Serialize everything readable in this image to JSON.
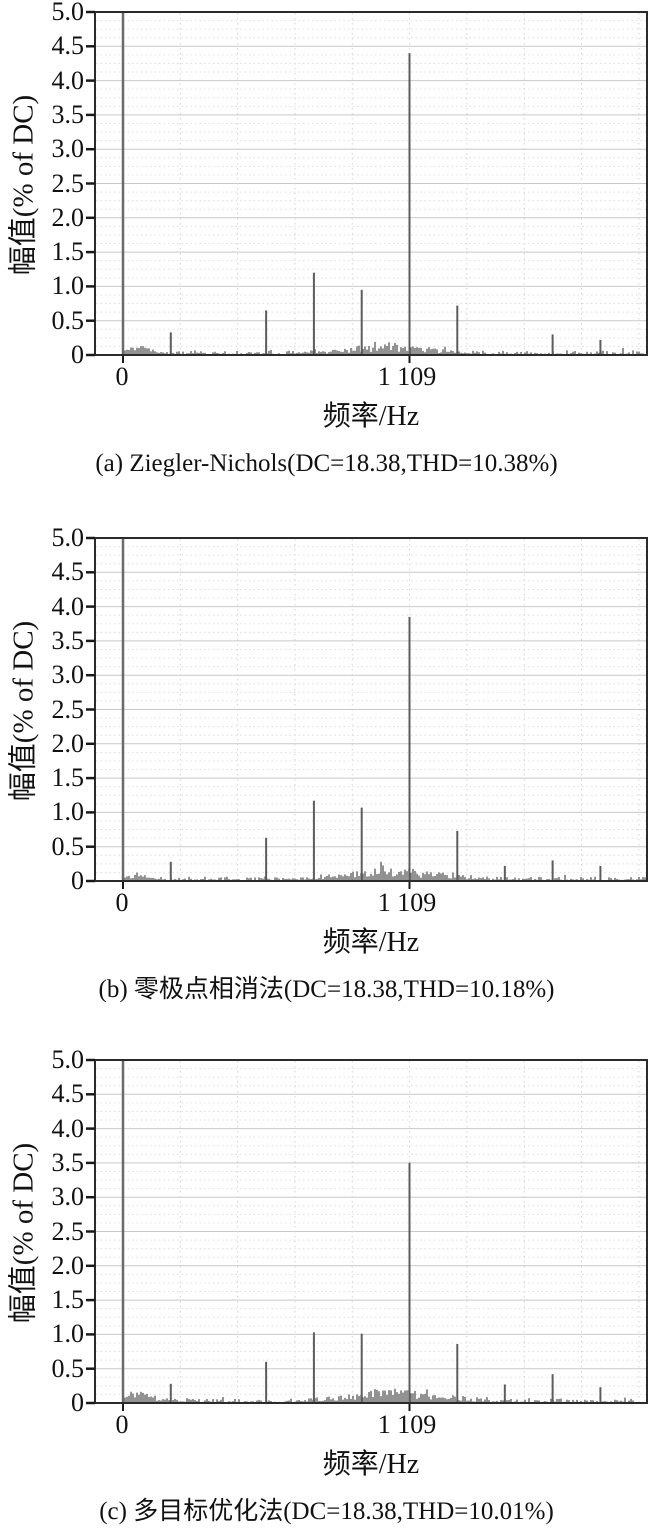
{
  "figure": {
    "ylabel": "幅值(% of DC)",
    "xlabel": "频率/Hz"
  },
  "chart_data": [
    {
      "type": "bar",
      "panel": "a",
      "title": "(a) Ziegler-Nichols(DC=18.38,THD=10.38%)",
      "method": "Ziegler-Nichols",
      "dc": 18.38,
      "thd_percent": 10.38,
      "xlabel": "频率/Hz",
      "ylabel": "幅值(% of DC)",
      "ylim": [
        0,
        5.0
      ],
      "grid": "on",
      "y_ticks": [
        "0",
        "0.5",
        "1.0",
        "1.5",
        "2.0",
        "2.5",
        "3.0",
        "3.5",
        "4.0",
        "4.5",
        "5.0"
      ],
      "x_ticks": [
        {
          "hz": 0,
          "label": "0"
        },
        {
          "hz": 1109,
          "label": "1 109"
        }
      ],
      "dc_spike": {
        "hz": 0,
        "amplitude": 5.0,
        "clipped": true
      },
      "peaks": [
        {
          "hz": 185,
          "amp": 0.33
        },
        {
          "hz": 554,
          "amp": 0.65
        },
        {
          "hz": 739,
          "amp": 1.2
        },
        {
          "hz": 924,
          "amp": 0.95
        },
        {
          "hz": 1109,
          "amp": 4.4
        },
        {
          "hz": 1294,
          "amp": 0.72
        },
        {
          "hz": 1663,
          "amp": 0.3
        },
        {
          "hz": 1848,
          "amp": 0.22
        }
      ],
      "noise": {
        "seed": 11,
        "baseline": 0.05,
        "hump_center_hz": 1040,
        "hump_sigma_hz": 200,
        "hump_peak": 0.17,
        "dc_cluster_peak": 0.13
      }
    },
    {
      "type": "bar",
      "panel": "b",
      "title": "(b) 零极点相消法(DC=18.38,THD=10.18%)",
      "method": "零极点相消法",
      "dc": 18.38,
      "thd_percent": 10.18,
      "xlabel": "频率/Hz",
      "ylabel": "幅值(% of DC)",
      "ylim": [
        0,
        5.0
      ],
      "grid": "on",
      "y_ticks": [
        "0",
        "0.5",
        "1.0",
        "1.5",
        "2.0",
        "2.5",
        "3.0",
        "3.5",
        "4.0",
        "4.5",
        "5.0"
      ],
      "x_ticks": [
        {
          "hz": 0,
          "label": "0"
        },
        {
          "hz": 1109,
          "label": "1 109"
        }
      ],
      "dc_spike": {
        "hz": 0,
        "amplitude": 5.0,
        "clipped": true
      },
      "peaks": [
        {
          "hz": 185,
          "amp": 0.28
        },
        {
          "hz": 554,
          "amp": 0.63
        },
        {
          "hz": 739,
          "amp": 1.17
        },
        {
          "hz": 924,
          "amp": 1.07
        },
        {
          "hz": 1109,
          "amp": 3.85
        },
        {
          "hz": 1294,
          "amp": 0.73
        },
        {
          "hz": 1478,
          "amp": 0.22
        },
        {
          "hz": 1663,
          "amp": 0.3
        },
        {
          "hz": 1848,
          "amp": 0.22
        }
      ],
      "noise": {
        "seed": 22,
        "baseline": 0.05,
        "hump_center_hz": 1050,
        "hump_sigma_hz": 215,
        "hump_peak": 0.19,
        "dc_cluster_peak": 0.1
      }
    },
    {
      "type": "bar",
      "panel": "c",
      "title": "(c) 多目标优化法(DC=18.38,THD=10.01%)",
      "method": "多目标优化法",
      "dc": 18.38,
      "thd_percent": 10.01,
      "xlabel": "频率/Hz",
      "ylabel": "幅值(% of DC)",
      "ylim": [
        0,
        5.0
      ],
      "grid": "on",
      "y_ticks": [
        "0",
        "0.5",
        "1.0",
        "1.5",
        "2.0",
        "2.5",
        "3.0",
        "3.5",
        "4.0",
        "4.5",
        "5.0"
      ],
      "x_ticks": [
        {
          "hz": 0,
          "label": "0"
        },
        {
          "hz": 1109,
          "label": "1 109"
        }
      ],
      "dc_spike": {
        "hz": 0,
        "amplitude": 5.0,
        "clipped": true
      },
      "peaks": [
        {
          "hz": 185,
          "amp": 0.28
        },
        {
          "hz": 554,
          "amp": 0.6
        },
        {
          "hz": 739,
          "amp": 1.03
        },
        {
          "hz": 924,
          "amp": 1.01
        },
        {
          "hz": 1109,
          "amp": 3.5
        },
        {
          "hz": 1294,
          "amp": 0.86
        },
        {
          "hz": 1478,
          "amp": 0.27
        },
        {
          "hz": 1663,
          "amp": 0.42
        },
        {
          "hz": 1848,
          "amp": 0.23
        }
      ],
      "noise": {
        "seed": 33,
        "baseline": 0.05,
        "hump_center_hz": 1050,
        "hump_sigma_hz": 215,
        "hump_peak": 0.19,
        "dc_cluster_peak": 0.16
      }
    }
  ]
}
